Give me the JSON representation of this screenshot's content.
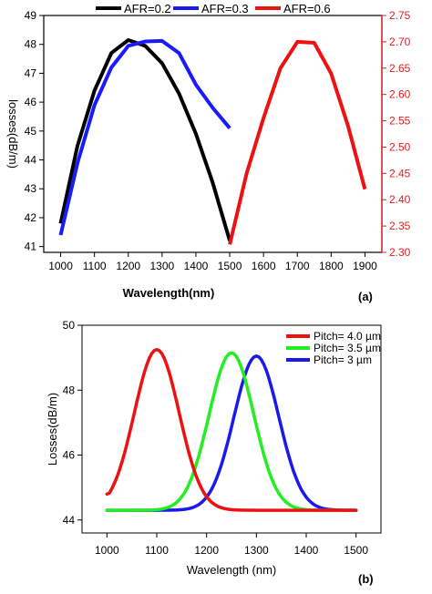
{
  "chart_data": [
    {
      "type": "line",
      "panel_label": "(a)",
      "xlabel": "Wavelength(nm)",
      "ylabel": "losses(dB/m)",
      "xlim": [
        950,
        1950
      ],
      "ylim_left": [
        40.8,
        49
      ],
      "ylim_right": [
        2.3,
        2.75
      ],
      "xticks": [
        "1000",
        "1100",
        "1200",
        "1300",
        "1400",
        "1500",
        "1600",
        "1700",
        "1800",
        "1900"
      ],
      "yticks_left": [
        "41",
        "42",
        "43",
        "44",
        "45",
        "46",
        "47",
        "48",
        "49"
      ],
      "yticks_right": [
        "2.30",
        "2.35",
        "2.40",
        "2.45",
        "2.50",
        "2.55",
        "2.60",
        "2.65",
        "2.70",
        "2.75"
      ],
      "legend_position": "top",
      "series": [
        {
          "name": "AFR=0.2",
          "color": "#000000",
          "axis": "left",
          "x": [
            1000,
            1050,
            1100,
            1150,
            1200,
            1250,
            1300,
            1350,
            1400,
            1450,
            1500
          ],
          "y": [
            41.8,
            44.5,
            46.4,
            47.7,
            48.15,
            47.95,
            47.35,
            46.3,
            44.9,
            43.2,
            41.2
          ]
        },
        {
          "name": "AFR=0.3",
          "color": "#1a1aff",
          "axis": "left",
          "x": [
            1000,
            1050,
            1100,
            1150,
            1200,
            1250,
            1300,
            1350,
            1400,
            1450,
            1500
          ],
          "y": [
            41.4,
            43.9,
            45.9,
            47.2,
            47.95,
            48.1,
            48.12,
            47.7,
            46.6,
            45.8,
            45.1
          ]
        },
        {
          "name": "AFR=0.6",
          "color": "#ee1111",
          "axis": "right",
          "x": [
            1500,
            1550,
            1600,
            1650,
            1700,
            1750,
            1800,
            1850,
            1900
          ],
          "y": [
            2.315,
            2.45,
            2.555,
            2.65,
            2.7,
            2.698,
            2.64,
            2.54,
            2.42
          ]
        }
      ]
    },
    {
      "type": "line",
      "panel_label": "(b)",
      "xlabel": "Wavelength (nm)",
      "ylabel": "Losses(dB/m)",
      "xlim": [
        950,
        1550
      ],
      "ylim": [
        43.6,
        50
      ],
      "xticks": [
        "1000",
        "1100",
        "1200",
        "1300",
        "1400",
        "1500"
      ],
      "yticks": [
        "44",
        "46",
        "48",
        "50"
      ],
      "legend_position": "top-right",
      "series": [
        {
          "name": "Pitch= 4.0 µm",
          "color": "#ee1111",
          "baseline": 44.3,
          "peak": 49.25,
          "center": 1100,
          "sigma": 45,
          "start_value": 44.8,
          "x_range": [
            1000,
            1500
          ]
        },
        {
          "name": "Pitch= 3.5 µm",
          "color": "#22ee22",
          "baseline": 44.3,
          "peak": 49.15,
          "center": 1250,
          "sigma": 45,
          "x_range": [
            1000,
            1500
          ]
        },
        {
          "name": "Pitch= 3 µm",
          "color": "#1a1aee",
          "baseline": 44.3,
          "peak": 49.05,
          "center": 1300,
          "sigma": 45,
          "x_range": [
            1000,
            1500
          ]
        }
      ]
    }
  ]
}
